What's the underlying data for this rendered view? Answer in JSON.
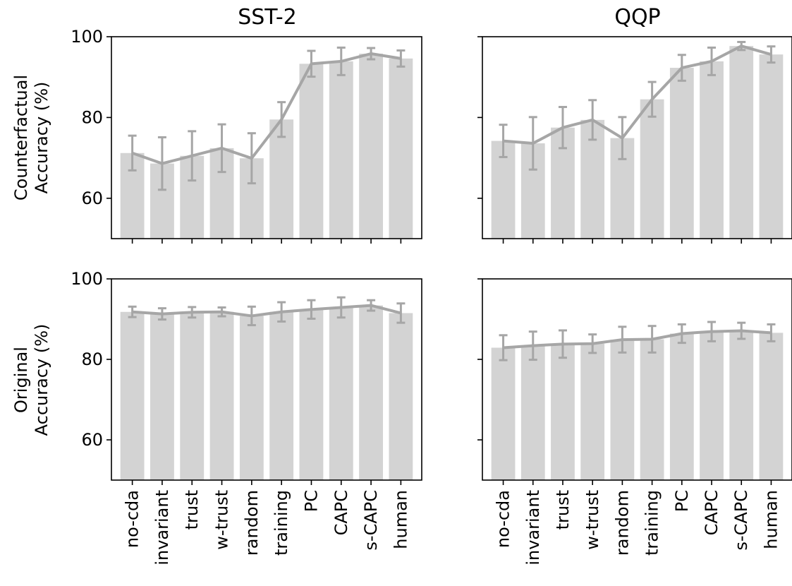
{
  "chart_data": {
    "type": "bar",
    "categories": [
      "no-cda",
      "invariant",
      "trust",
      "w-trust",
      "random",
      "training",
      "PC",
      "CAPC",
      "s-CAPC",
      "human"
    ],
    "columns": [
      "SST-2",
      "QQP"
    ],
    "rows": [
      {
        "ylabel_line1": "Counterfactual",
        "ylabel_line2": "Accuracy (%)"
      },
      {
        "ylabel_line1": "Original",
        "ylabel_line2": "Accuracy (%)"
      }
    ],
    "ylim": [
      50,
      100
    ],
    "yticks": [
      60,
      80,
      100
    ],
    "colors": {
      "bar": "#d3d3d3",
      "line": "#a6a6a6"
    },
    "panels": [
      {
        "column": "SST-2",
        "row": "Counterfactual",
        "values": [
          71.2,
          68.6,
          70.5,
          72.4,
          69.9,
          79.5,
          93.3,
          93.9,
          95.8,
          94.6
        ],
        "errors": [
          4.3,
          6.5,
          6.1,
          5.9,
          6.2,
          4.3,
          3.2,
          3.4,
          1.4,
          2.0
        ]
      },
      {
        "column": "QQP",
        "row": "Counterfactual",
        "values": [
          74.2,
          73.6,
          77.5,
          79.4,
          74.9,
          84.5,
          92.3,
          93.9,
          97.7,
          95.6
        ],
        "errors": [
          4.0,
          6.5,
          5.1,
          4.9,
          5.2,
          4.3,
          3.2,
          3.4,
          1.0,
          2.0
        ]
      },
      {
        "column": "SST-2",
        "row": "Original",
        "values": [
          91.8,
          91.3,
          91.7,
          91.8,
          90.8,
          91.8,
          92.4,
          92.9,
          93.4,
          91.5
        ],
        "errors": [
          1.3,
          1.4,
          1.3,
          1.1,
          2.3,
          2.4,
          2.3,
          2.5,
          1.3,
          2.4
        ]
      },
      {
        "column": "QQP",
        "row": "Original",
        "values": [
          82.9,
          83.4,
          83.8,
          83.9,
          84.9,
          85.0,
          86.4,
          86.9,
          87.1,
          86.6
        ],
        "errors": [
          3.1,
          3.5,
          3.4,
          2.3,
          3.2,
          3.3,
          2.3,
          2.4,
          2.0,
          2.1
        ]
      }
    ]
  }
}
